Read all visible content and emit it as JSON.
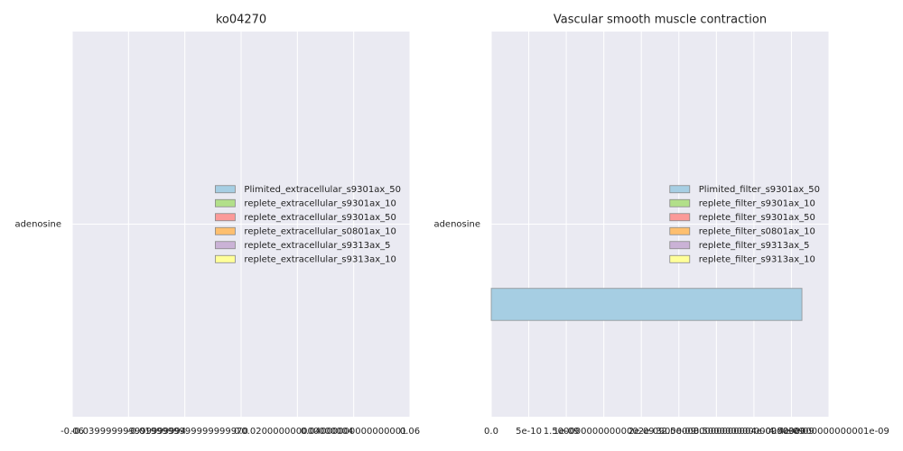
{
  "chart_data": [
    {
      "type": "barh",
      "title": "ko04270",
      "categories": [
        "adenosine"
      ],
      "series": [
        {
          "name": "Plimited_extracellular_s9301ax_50",
          "color": "#a6cee3",
          "values": [
            0
          ]
        },
        {
          "name": "replete_extracellular_s9301ax_10",
          "color": "#b2df8a",
          "values": [
            0
          ]
        },
        {
          "name": "replete_extracellular_s9301ax_50",
          "color": "#fb9a99",
          "values": [
            0
          ]
        },
        {
          "name": "replete_extracellular_s0801ax_10",
          "color": "#fdbf6f",
          "values": [
            0
          ]
        },
        {
          "name": "replete_extracellular_s9313ax_5",
          "color": "#cab2d6",
          "values": [
            0
          ]
        },
        {
          "name": "replete_extracellular_s9313ax_10",
          "color": "#ffff99",
          "values": [
            0
          ]
        }
      ],
      "xlim": [
        -0.06,
        0.06
      ],
      "xticks": [
        -0.06,
        {
          "value": -0.04,
          "label": "-0.039999999999999994"
        },
        {
          "value": -0.02,
          "label": "-0.019999999999999997"
        },
        {
          "value": 0,
          "label": "0.0"
        },
        {
          "value": 0.02,
          "label": "0.020000000000000004"
        },
        {
          "value": 0.04,
          "label": "0.04000000000000001"
        },
        0.06
      ],
      "grid": true,
      "legend": "center right"
    },
    {
      "type": "barh",
      "title": "Vascular smooth muscle contraction",
      "categories": [
        "adenosine"
      ],
      "series": [
        {
          "name": "Plimited_filter_s9301ax_50",
          "color": "#a6cee3",
          "values": [
            4.14e-09
          ]
        },
        {
          "name": "replete_filter_s9301ax_10",
          "color": "#b2df8a",
          "values": [
            0
          ]
        },
        {
          "name": "replete_filter_s9301ax_50",
          "color": "#fb9a99",
          "values": [
            0
          ]
        },
        {
          "name": "replete_filter_s0801ax_10",
          "color": "#fdbf6f",
          "values": [
            0
          ]
        },
        {
          "name": "replete_filter_s9313ax_5",
          "color": "#cab2d6",
          "values": [
            0
          ]
        },
        {
          "name": "replete_filter_s9313ax_10",
          "color": "#ffff99",
          "values": [
            0
          ]
        }
      ],
      "xlim": [
        0,
        4.5e-09
      ],
      "xticks": [
        {
          "value": 0,
          "label": "0.0"
        },
        5e-10,
        {
          "value": 1e-09,
          "label": "1e-09"
        },
        {
          "value": 1.5e-09,
          "label": "1.5000000000000002e-09"
        },
        {
          "value": 2e-09,
          "label": "2e-09"
        },
        {
          "value": 2.5e-09,
          "label": "2.5e-09"
        },
        {
          "value": 3e-09,
          "label": "3.0000000000000004e-09"
        },
        {
          "value": 3.5e-09,
          "label": "3.5000000000000003e-09"
        },
        {
          "value": 4e-09,
          "label": "4e-09"
        },
        {
          "value": 4.5e-09,
          "label": "4.5000000000000001e-09"
        }
      ],
      "grid": true,
      "legend": "center right"
    }
  ]
}
